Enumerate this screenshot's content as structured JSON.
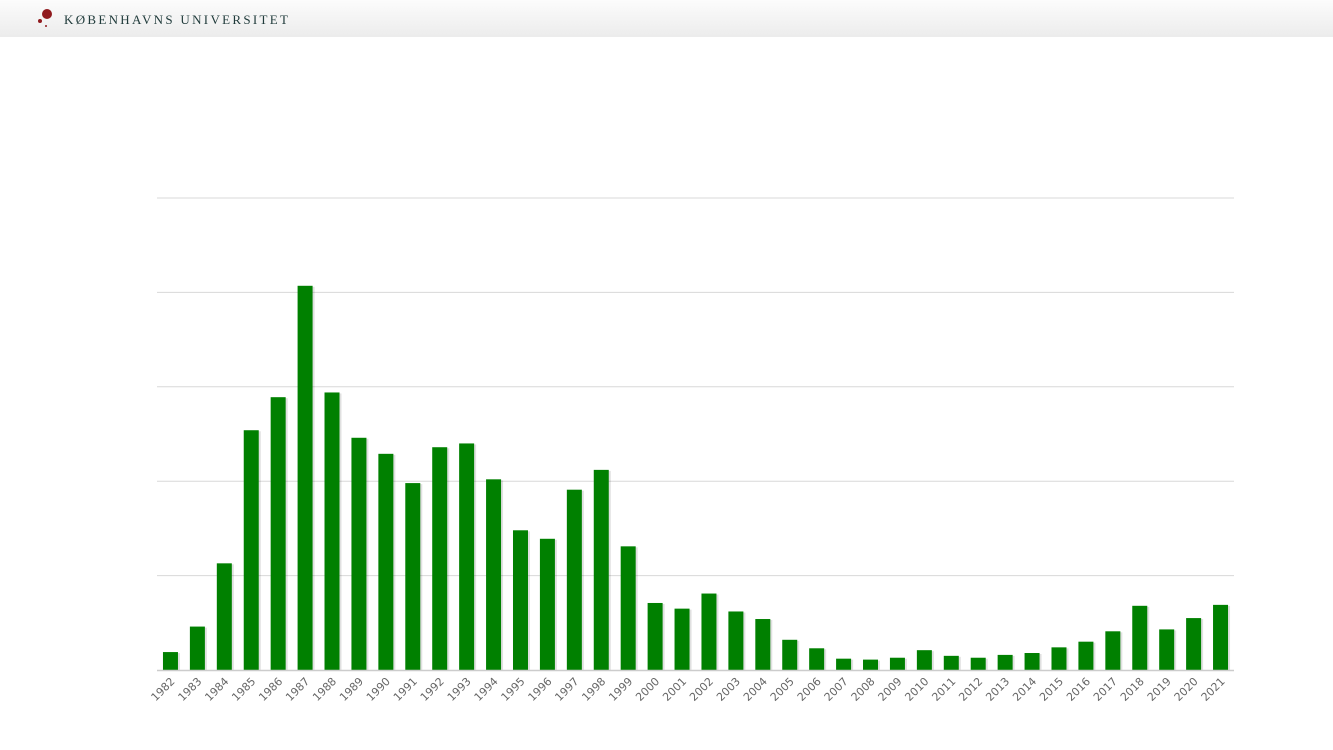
{
  "header": {
    "brand": "KØBENHAVNS UNIVERSITET",
    "logo_icon": "university-seal-dots-icon",
    "logo_color": "#901a1e"
  },
  "chart_data": {
    "type": "bar",
    "title": "",
    "xlabel": "",
    "ylabel": "",
    "y_unit": "gridline intervals (no y-axis labels shown)",
    "ylim": [
      0,
      5
    ],
    "grid": true,
    "bar_color": "#008000",
    "categories": [
      "1982",
      "1983",
      "1984",
      "1985",
      "1986",
      "1987",
      "1988",
      "1989",
      "1990",
      "1991",
      "1992",
      "1993",
      "1994",
      "1995",
      "1996",
      "1997",
      "1998",
      "1999",
      "2000",
      "2001",
      "2002",
      "2003",
      "2004",
      "2005",
      "2006",
      "2007",
      "2008",
      "2009",
      "2010",
      "2011",
      "2012",
      "2013",
      "2014",
      "2015",
      "2016",
      "2017",
      "2018",
      "2019",
      "2020",
      "2021"
    ],
    "values": [
      0.19,
      0.46,
      1.13,
      2.54,
      2.89,
      4.07,
      2.94,
      2.46,
      2.29,
      1.98,
      2.36,
      2.4,
      2.02,
      1.48,
      1.39,
      1.91,
      2.12,
      1.31,
      0.71,
      0.65,
      0.81,
      0.62,
      0.54,
      0.32,
      0.23,
      0.12,
      0.11,
      0.13,
      0.21,
      0.15,
      0.13,
      0.16,
      0.18,
      0.24,
      0.3,
      0.41,
      0.68,
      0.43,
      0.55,
      0.69
    ]
  }
}
